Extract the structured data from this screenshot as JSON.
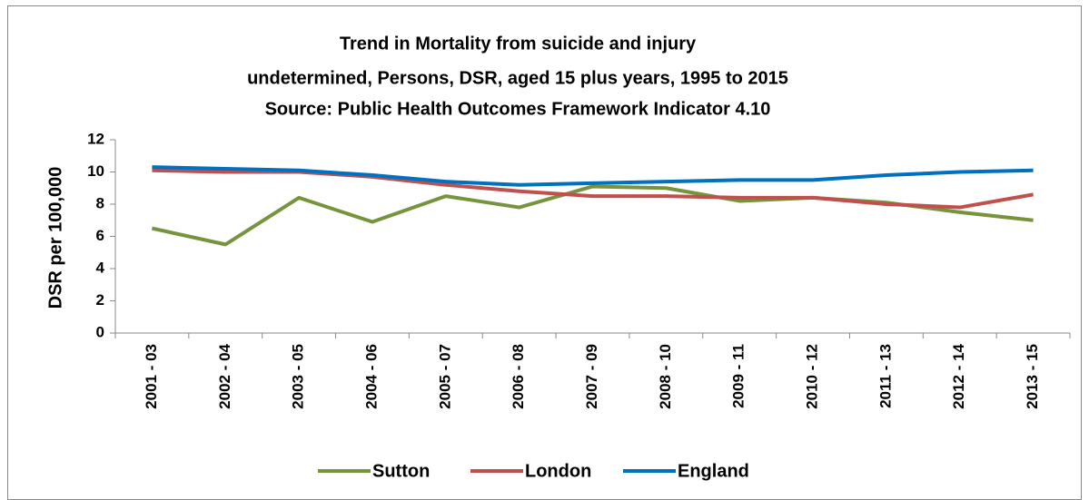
{
  "chart_data": {
    "type": "line",
    "title": [
      "Trend in Mortality from suicide and injury",
      "undetermined, Persons, DSR, aged 15 plus years, 1995 to 2015",
      "Source: Public Health Outcomes Framework Indicator 4.10"
    ],
    "y_label": "DSR per 100,000",
    "categories": [
      "2001 - 03",
      "2002 - 04",
      "2003 - 05",
      "2004 - 06",
      "2005 - 07",
      "2006 - 08",
      "2007 - 09",
      "2008 - 10",
      "2009 - 11",
      "2010 - 12",
      "2011 - 13",
      "2012 - 14",
      "2013 - 15"
    ],
    "series": [
      {
        "name": "Sutton",
        "color": "#77933c",
        "values": [
          6.5,
          5.5,
          8.4,
          6.9,
          8.5,
          7.8,
          9.1,
          9.0,
          8.2,
          8.4,
          8.1,
          7.5,
          7.0
        ]
      },
      {
        "name": "London",
        "color": "#c0504d",
        "values": [
          10.1,
          10.0,
          10.0,
          9.7,
          9.2,
          8.8,
          8.5,
          8.5,
          8.4,
          8.4,
          8.0,
          7.8,
          8.6
        ]
      },
      {
        "name": "England",
        "color": "#0070c0",
        "values": [
          10.3,
          10.2,
          10.1,
          9.8,
          9.4,
          9.2,
          9.3,
          9.4,
          9.5,
          9.5,
          9.8,
          10.0,
          10.1
        ]
      }
    ],
    "ylim": [
      0,
      12
    ],
    "yticks": [
      0,
      2,
      4,
      6,
      8,
      10,
      12
    ],
    "grid": false,
    "legend": "bottom"
  }
}
